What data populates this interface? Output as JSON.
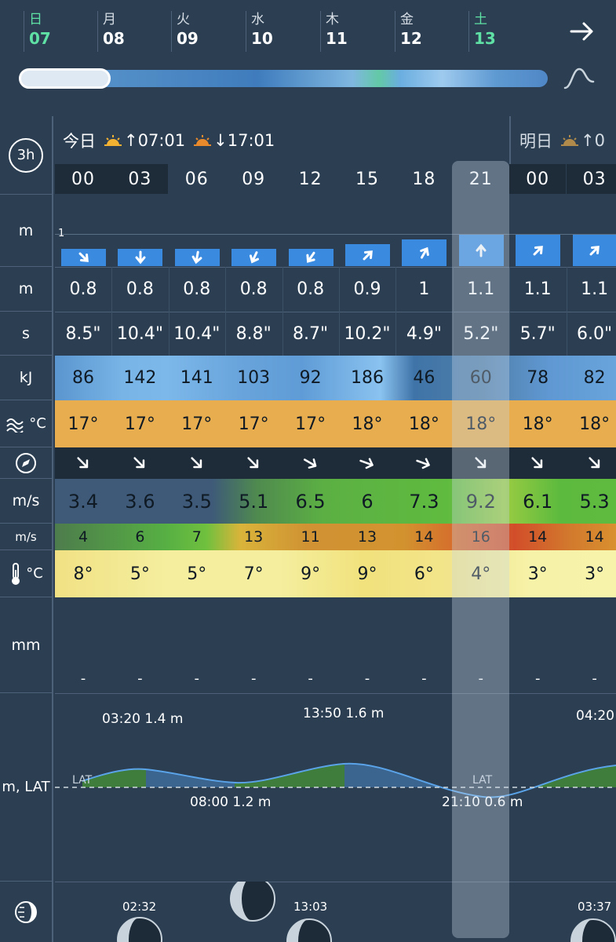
{
  "days": [
    {
      "dow": "日",
      "num": "07",
      "weekend": true
    },
    {
      "dow": "月",
      "num": "08",
      "weekend": false
    },
    {
      "dow": "火",
      "num": "09",
      "weekend": false
    },
    {
      "dow": "水",
      "num": "10",
      "weekend": false
    },
    {
      "dow": "木",
      "num": "11",
      "weekend": false
    },
    {
      "dow": "金",
      "num": "12",
      "weekend": false
    },
    {
      "dow": "土",
      "num": "13",
      "weekend": true
    }
  ],
  "labels": {
    "interval": "3h",
    "wave_height_unit": "m",
    "swell_height_unit": "m",
    "period_unit": "s",
    "energy_unit": "kJ",
    "water_temp_unit": "°C",
    "wind_unit": "m/s",
    "gust_unit": "m/s",
    "air_temp_unit": "°C",
    "precip_unit": "mm",
    "tide_unit": "m, LAT"
  },
  "today_header": {
    "label": "今日",
    "sunrise": "07:01",
    "sunset": "17:01"
  },
  "tomorrow_header": {
    "label": "明日",
    "sunrise_partial": "0"
  },
  "hours": [
    "00",
    "03",
    "06",
    "09",
    "12",
    "15",
    "18",
    "21",
    "00",
    "03"
  ],
  "wave_scale_label": "1",
  "wave_heights": [
    "0.8",
    "0.8",
    "0.8",
    "0.8",
    "0.8",
    "0.9",
    "1",
    "1.1",
    "1.1",
    "1.1"
  ],
  "wave_dirs_deg": [
    -45,
    -90,
    -100,
    -115,
    -125,
    45,
    60,
    90,
    45,
    45
  ],
  "periods": [
    "8.5\"",
    "10.4\"",
    "10.4\"",
    "8.8\"",
    "8.7\"",
    "10.2\"",
    "4.9\"",
    "5.2\"",
    "5.7\"",
    "6.0\""
  ],
  "energy": [
    "86",
    "142",
    "141",
    "103",
    "92",
    "186",
    "46",
    "60",
    "78",
    "82"
  ],
  "water_temp": [
    "17°",
    "17°",
    "17°",
    "17°",
    "17°",
    "18°",
    "18°",
    "18°",
    "18°",
    "18°"
  ],
  "wind_dirs_deg": [
    135,
    135,
    135,
    135,
    120,
    110,
    110,
    135,
    135,
    135
  ],
  "wind_speed": [
    "3.4",
    "3.6",
    "3.5",
    "5.1",
    "6.5",
    "6",
    "7.3",
    "9.2",
    "6.1",
    "5.3"
  ],
  "gusts": [
    "4",
    "6",
    "7",
    "13",
    "11",
    "13",
    "14",
    "16",
    "14",
    "14"
  ],
  "air_temp": [
    "8°",
    "5°",
    "5°",
    "7°",
    "9°",
    "9°",
    "6°",
    "4°",
    "3°",
    "3°"
  ],
  "precip": [
    "-",
    "-",
    "-",
    "-",
    "-",
    "-",
    "-",
    "-",
    "-",
    "-"
  ],
  "tides": [
    {
      "label": "03:20 1.4 m"
    },
    {
      "label": "08:00 1.2 m"
    },
    {
      "label": "13:50 1.6 m"
    },
    {
      "label": "21:10 0.6 m"
    },
    {
      "label": "04:20"
    }
  ],
  "lat_label": "LAT",
  "moon_times": [
    "02:32",
    "13:03",
    "03:37"
  ],
  "colors": {
    "background": "#2b3e52",
    "weekend": "#5fe0a4",
    "wave_bar": "#3a8ae0",
    "water_temp": "#e7ad4f"
  }
}
